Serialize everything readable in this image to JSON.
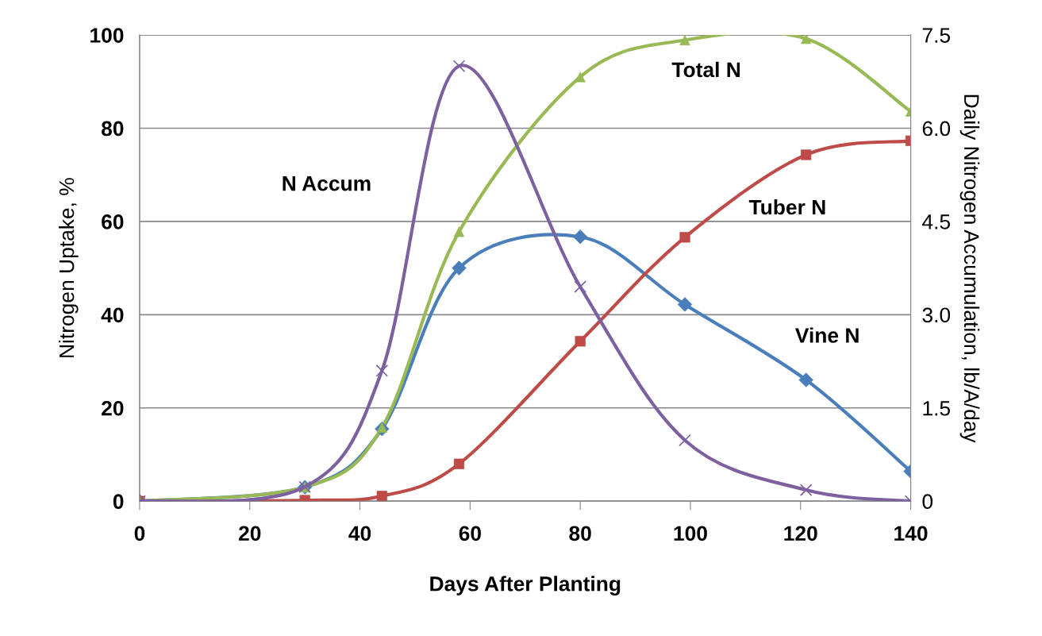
{
  "chart_data": {
    "type": "line",
    "xlabel": "Days After Planting",
    "ylabel": "Nitrogen Uptake, %",
    "y2label": "Daily Nitrogen Accumulation, lb/A/day",
    "x": [
      0,
      30,
      44,
      58,
      80,
      99,
      121,
      140
    ],
    "series": [
      {
        "name": "Vine N",
        "color": "#4a7ebb",
        "marker": "diamond",
        "values": [
          0,
          3,
          15.5,
          50,
          56.7,
          42.2,
          26,
          6.4
        ]
      },
      {
        "name": "Tuber N",
        "color": "#be4b48",
        "marker": "square",
        "values": [
          0,
          0.2,
          1.1,
          8,
          34.3,
          56.6,
          74.3,
          77.3
        ]
      },
      {
        "name": "Total N",
        "color": "#98b954",
        "marker": "triangle",
        "values": [
          0,
          3,
          15.8,
          57.8,
          91,
          98.9,
          99.2,
          83.6
        ]
      },
      {
        "name": "N Accum",
        "color": "#7d60a0",
        "marker": "cross",
        "axis": "y2",
        "values": [
          0,
          0.23,
          2.1,
          7.0,
          3.45,
          0.98,
          0.18,
          0
        ]
      }
    ],
    "xlim": [
      0,
      140
    ],
    "xticks": [
      0,
      20,
      40,
      60,
      80,
      100,
      120,
      140
    ],
    "ylim": [
      0,
      100
    ],
    "yticks": [
      0,
      20,
      40,
      60,
      80,
      100
    ],
    "y2lim": [
      0,
      7.5
    ],
    "y2ticks": [
      0,
      1.5,
      {
        "value": 3,
        "label": "3.0"
      },
      4.5,
      {
        "value": 6,
        "label": "6.0"
      },
      7.5
    ],
    "grid": "y",
    "legend": false,
    "line_style": "solid"
  }
}
